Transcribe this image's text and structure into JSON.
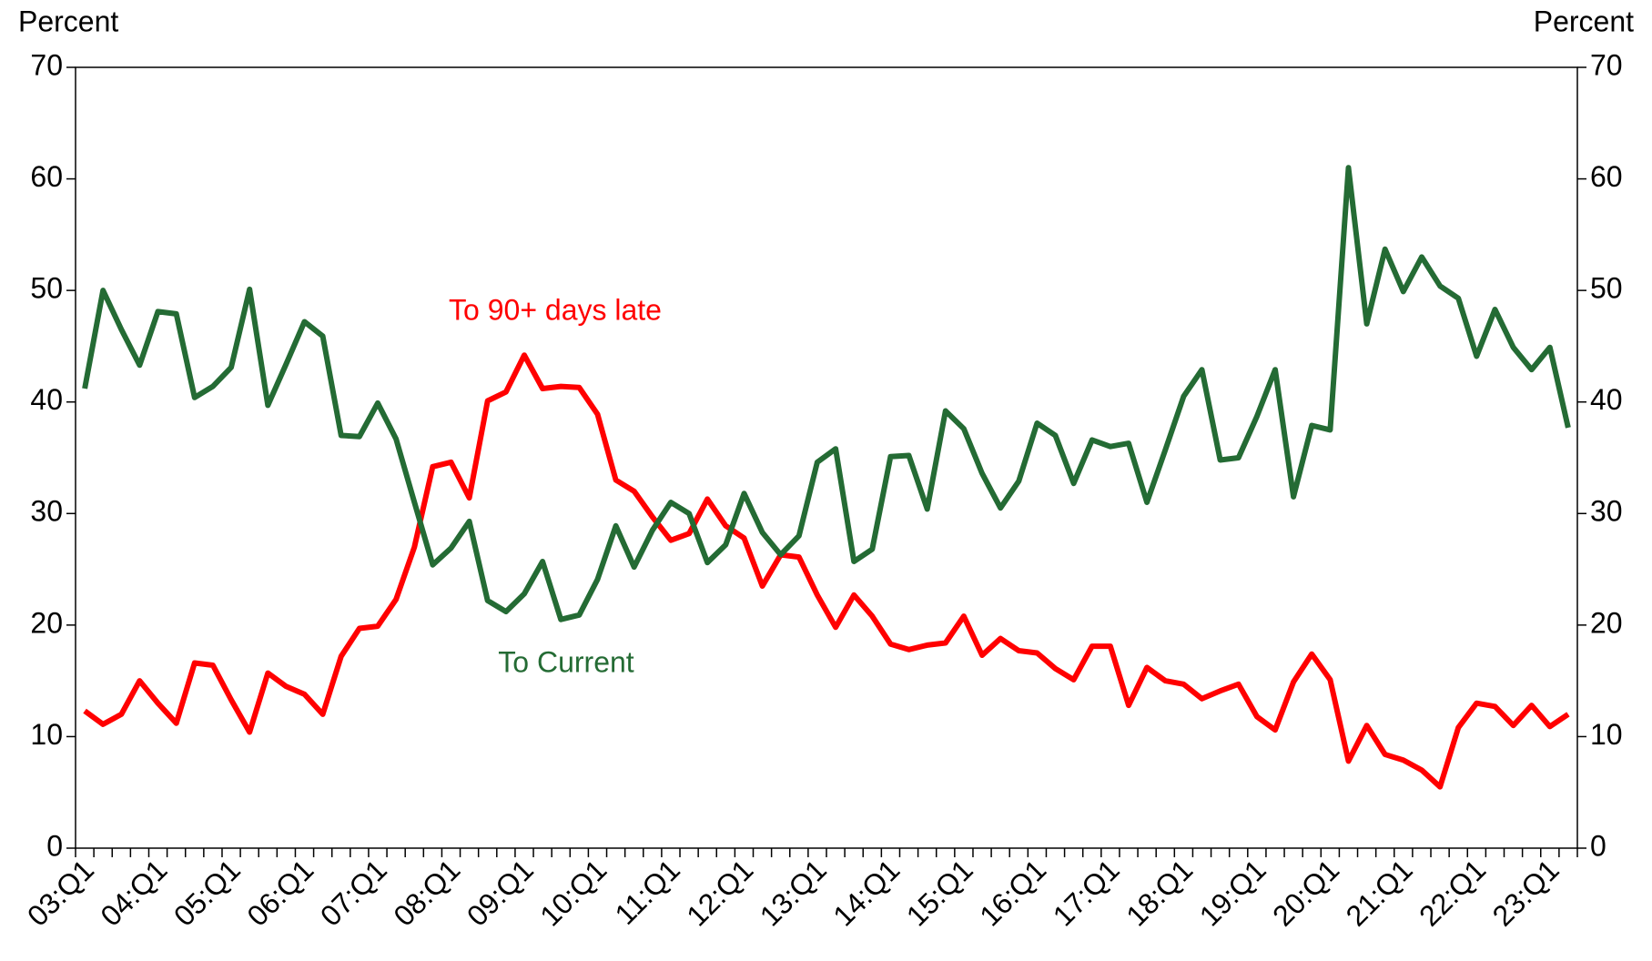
{
  "chart_data": {
    "type": "line",
    "y_label": "Percent",
    "y2_label": "Percent",
    "categories": [
      "03:Q1",
      null,
      null,
      null,
      "04:Q1",
      null,
      null,
      null,
      "05:Q1",
      null,
      null,
      null,
      "06:Q1",
      null,
      null,
      null,
      "07:Q1",
      null,
      null,
      null,
      "08:Q1",
      null,
      null,
      null,
      "09:Q1",
      null,
      null,
      null,
      "10:Q1",
      null,
      null,
      null,
      "11:Q1",
      null,
      null,
      null,
      "12:Q1",
      null,
      null,
      null,
      "13:Q1",
      null,
      null,
      null,
      "14:Q1",
      null,
      null,
      null,
      "15:Q1",
      null,
      null,
      null,
      "16:Q1",
      null,
      null,
      null,
      "17:Q1",
      null,
      null,
      null,
      "18:Q1",
      null,
      null,
      null,
      "19:Q1",
      null,
      null,
      null,
      "20:Q1",
      null,
      null,
      null,
      "21:Q1",
      null,
      null,
      null,
      "22:Q1",
      null,
      null,
      null,
      "23:Q1",
      null
    ],
    "series": [
      {
        "name": "To 90+ days late",
        "color": "#ff0000",
        "values": [
          12.3,
          11.1,
          12,
          15,
          13,
          11.2,
          16.6,
          16.4,
          13.3,
          10.4,
          15.7,
          14.5,
          13.8,
          12,
          17.2,
          19.7,
          19.9,
          22.3,
          27,
          34.2,
          34.6,
          31.4,
          40.1,
          40.9,
          44.2,
          41.2,
          41.4,
          41.3,
          38.9,
          33,
          32,
          29.7,
          27.6,
          28.2,
          31.3,
          28.9,
          27.8,
          23.5,
          26.3,
          26.1,
          22.7,
          19.8,
          22.7,
          20.8,
          18.3,
          17.8,
          18.2,
          18.4,
          20.8,
          17.3,
          18.8,
          17.7,
          17.5,
          16.1,
          15.1,
          18.1,
          18.1,
          12.8,
          16.2,
          15,
          14.7,
          13.4,
          14.1,
          14.7,
          11.8,
          10.6,
          14.9,
          17.4,
          15.1,
          7.8,
          11,
          8.4,
          7.9,
          7,
          5.5,
          10.8,
          13,
          12.7,
          11,
          12.8,
          10.9,
          12
        ]
      },
      {
        "name": "To Current",
        "color": "#246b34",
        "values": [
          41.2,
          50,
          46.5,
          43.3,
          48.1,
          47.9,
          40.4,
          41.4,
          43.1,
          50.1,
          39.7,
          43.4,
          47.2,
          45.9,
          37,
          36.9,
          39.9,
          36.7,
          31,
          25.4,
          26.9,
          29.3,
          22.2,
          21.2,
          22.8,
          25.7,
          20.5,
          20.9,
          24.1,
          28.9,
          25.2,
          28.5,
          31,
          30,
          25.6,
          27.2,
          31.8,
          28.3,
          26.3,
          28,
          34.6,
          35.8,
          25.7,
          26.8,
          35.1,
          35.2,
          30.4,
          39.2,
          37.6,
          33.6,
          30.5,
          32.9,
          38.1,
          37,
          32.7,
          36.6,
          36,
          36.3,
          31,
          35.7,
          40.5,
          42.9,
          34.8,
          35,
          38.7,
          42.9,
          31.5,
          37.9,
          37.5,
          61,
          47,
          53.7,
          49.9,
          53,
          50.4,
          49.3,
          44.1,
          48.3,
          44.9,
          42.9,
          44.9,
          37.7
        ]
      }
    ],
    "ylim": [
      0,
      70
    ],
    "yticks": [
      0,
      10,
      20,
      30,
      40,
      50,
      60,
      70
    ],
    "y2lim": [
      0,
      70
    ],
    "y2ticks": [
      0,
      10,
      20,
      30,
      40,
      50,
      60,
      70
    ]
  }
}
